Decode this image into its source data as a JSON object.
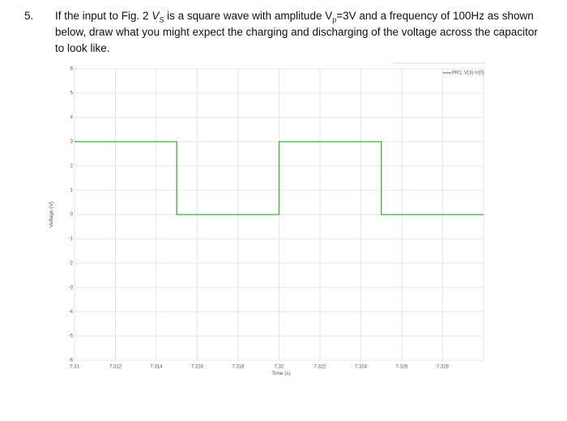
{
  "question": {
    "number": "5.",
    "parts": [
      "If the input to Fig. 2 ",
      "V",
      "S",
      " is a square wave with amplitude V",
      "p",
      "=3V and a frequency of 100Hz as shown below, draw what you might expect the charging and discharging of the voltage across the capacitor to look like."
    ]
  },
  "chart_data": {
    "type": "line",
    "x_label": "Time (s)",
    "y_label": "Voltage (V)",
    "x": [
      7.31,
      7.315,
      7.315,
      7.32,
      7.32,
      7.325,
      7.325,
      7.33
    ],
    "series": [
      {
        "name": "PR1: V(3)-V(0)",
        "color": "#3cb034",
        "values": [
          3,
          3,
          0,
          0,
          3,
          3,
          0,
          0
        ]
      }
    ],
    "xlim": [
      7.31,
      7.33
    ],
    "xticks": [
      7.31,
      7.312,
      7.314,
      7.316,
      7.318,
      7.32,
      7.322,
      7.324,
      7.326,
      7.328
    ],
    "ylim": [
      -6,
      6
    ],
    "yticks": [
      -6,
      -5,
      -4,
      -3,
      -2,
      -1,
      0,
      1,
      2,
      3,
      4,
      5,
      6
    ],
    "grid": true,
    "legend": "upper right"
  }
}
